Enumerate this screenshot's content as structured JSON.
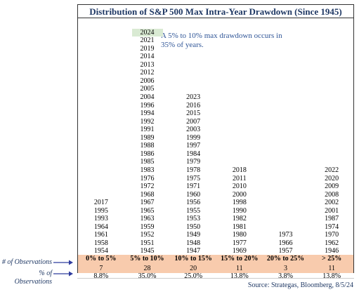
{
  "chart_data": {
    "type": "table",
    "title": "Distribution of S&P 500 Max Intra-Year Drawdown (Since 1945)",
    "annotation": "A 5% to 10% max drawdown occurs in 35% of years.",
    "highlight_year": "2024",
    "row_labels": {
      "count": "# of Observations",
      "percent": "% of Observations"
    },
    "bins": [
      {
        "label": "0% to 5%",
        "count": "7",
        "percent": "8.8%",
        "years": [
          "1954",
          "1958",
          "1961",
          "1964",
          "1993",
          "1995",
          "2017"
        ]
      },
      {
        "label": "5% to 10%",
        "count": "28",
        "percent": "35.0%",
        "years": [
          "1945",
          "1951",
          "1952",
          "1959",
          "1963",
          "1965",
          "1967",
          "1968",
          "1972",
          "1976",
          "1983",
          "1985",
          "1986",
          "1988",
          "1989",
          "1991",
          "1992",
          "1994",
          "1996",
          "2004",
          "2005",
          "2006",
          "2012",
          "2013",
          "2014",
          "2019",
          "2021",
          "2024"
        ]
      },
      {
        "label": "10% to 15%",
        "count": "20",
        "percent": "25.0%",
        "years": [
          "1947",
          "1948",
          "1949",
          "1950",
          "1953",
          "1955",
          "1956",
          "1960",
          "1971",
          "1975",
          "1978",
          "1979",
          "1984",
          "1997",
          "1999",
          "2003",
          "2007",
          "2015",
          "2016",
          "2023"
        ]
      },
      {
        "label": "15% to 20%",
        "count": "11",
        "percent": "13.8%",
        "years": [
          "1969",
          "1977",
          "1980",
          "1981",
          "1982",
          "1990",
          "1998",
          "2000",
          "2010",
          "2011",
          "2018"
        ]
      },
      {
        "label": "20% to 25%",
        "count": "3",
        "percent": "3.8%",
        "years": [
          "1957",
          "1966",
          "1973"
        ]
      },
      {
        "label": "> 25%",
        "count": "11",
        "percent": "13.8%",
        "years": [
          "1946",
          "1962",
          "1970",
          "1974",
          "1987",
          "2001",
          "2002",
          "2008",
          "2009",
          "2020",
          "2022"
        ]
      }
    ]
  },
  "source": "Source: Strategas, Bloomberg, 8/5/24",
  "colors": {
    "title": "#1f3864",
    "annotation": "#2f5597",
    "band": "#f8cbad",
    "highlight": "#d9ead3",
    "arrow": "#2f3c9e"
  }
}
